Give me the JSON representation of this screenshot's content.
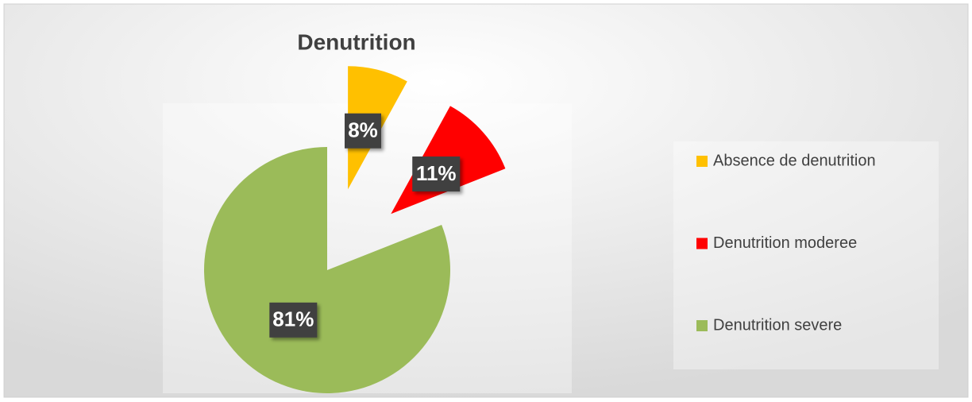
{
  "chart_data": {
    "type": "pie",
    "title": "Denutrition",
    "categories": [
      "Absence de denutrition",
      "Denutrition moderee",
      "Denutrition severe"
    ],
    "values": [
      8,
      11,
      81
    ],
    "value_labels": [
      "8%",
      "11%",
      "81%"
    ],
    "colors": [
      "#FFC000",
      "#FF0000",
      "#9BBB59"
    ],
    "legend": "right"
  }
}
